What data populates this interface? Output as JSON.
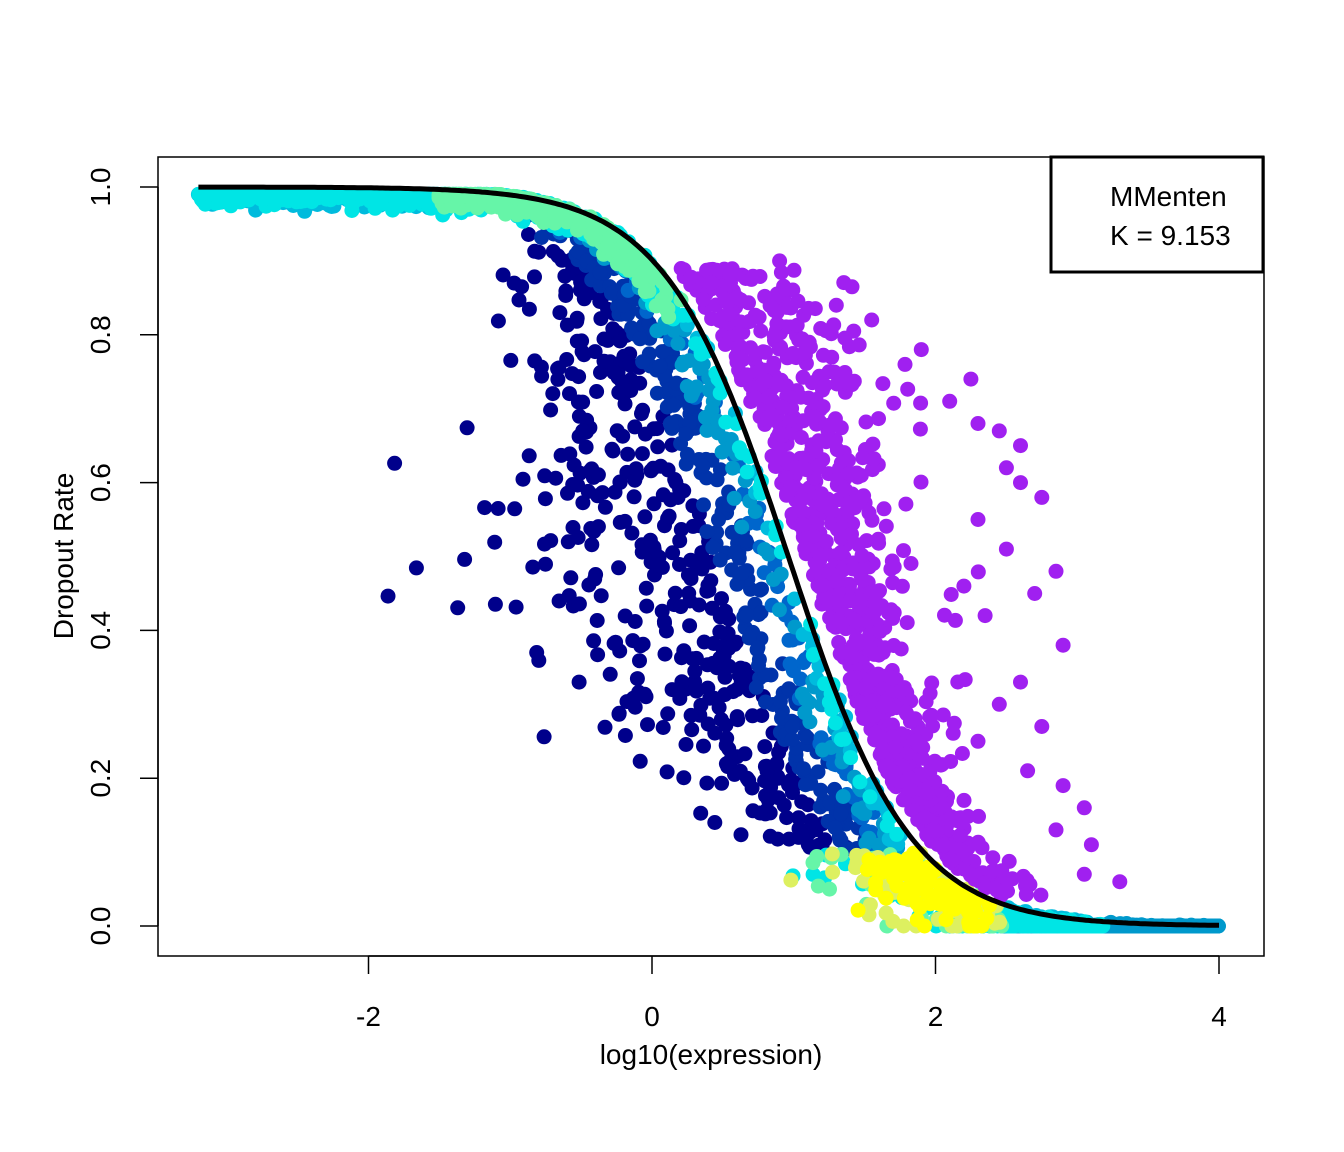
{
  "chart_data": {
    "type": "scatter",
    "xlabel": "log10(expression)",
    "ylabel": "Dropout Rate",
    "xlim": [
      -3.3,
      4.5
    ],
    "ylim": [
      -0.04,
      1.04
    ],
    "x_ticks": [
      -2,
      0,
      2,
      4
    ],
    "y_ticks": [
      0.0,
      0.2,
      0.4,
      0.6,
      0.8,
      1.0
    ],
    "x_tick_labels": [
      "-2",
      "0",
      "2",
      "4"
    ],
    "y_tick_labels": [
      "0.0",
      "0.2",
      "0.4",
      "0.6",
      "0.8",
      "1.0"
    ],
    "legend": {
      "position": "top-right",
      "lines": [
        "MMenten",
        "K = 9.153"
      ]
    },
    "fit_curve": {
      "model": "Michaelis-Menten",
      "K": 9.153,
      "formula": "1 - S/(K+S), S = 10^x",
      "color": "#000000"
    },
    "density_colors": [
      "#00008b",
      "#0033aa",
      "#0066cc",
      "#0099cc",
      "#00bbdd",
      "#00e5e5",
      "#66f5a8",
      "#ddf060",
      "#ffff00"
    ],
    "highlight_color": "#a020f0",
    "series": [
      {
        "role": "genes",
        "x_range": [
          -3.2,
          4.0
        ],
        "marker": "filled-circle"
      },
      {
        "role": "highlighted",
        "marker": "filled-circle",
        "color": "#a020f0",
        "points": [
          [
            0.9,
            0.9
          ],
          [
            1.3,
            0.84
          ],
          [
            1.55,
            0.82
          ],
          [
            1.9,
            0.78
          ],
          [
            2.25,
            0.74
          ],
          [
            2.1,
            0.71
          ],
          [
            2.3,
            0.68
          ],
          [
            2.45,
            0.67
          ],
          [
            2.6,
            0.65
          ],
          [
            2.5,
            0.62
          ],
          [
            2.6,
            0.6
          ],
          [
            2.75,
            0.58
          ],
          [
            2.3,
            0.55
          ],
          [
            2.5,
            0.51
          ],
          [
            2.85,
            0.48
          ],
          [
            2.2,
            0.46
          ],
          [
            2.7,
            0.45
          ],
          [
            2.35,
            0.42
          ],
          [
            2.9,
            0.38
          ],
          [
            2.6,
            0.33
          ],
          [
            2.45,
            0.3
          ],
          [
            2.75,
            0.27
          ],
          [
            2.3,
            0.25
          ],
          [
            2.65,
            0.21
          ],
          [
            2.9,
            0.19
          ],
          [
            3.05,
            0.16
          ],
          [
            2.85,
            0.13
          ],
          [
            3.1,
            0.11
          ],
          [
            3.3,
            0.06
          ],
          [
            3.05,
            0.07
          ]
        ]
      }
    ]
  }
}
